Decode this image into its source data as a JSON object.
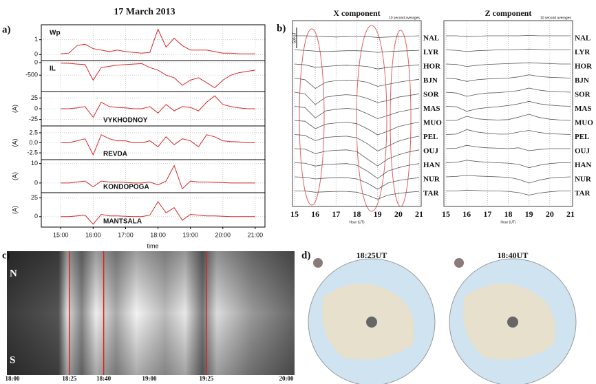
{
  "chart_data": [
    {
      "type": "stacked-line",
      "label": "a)",
      "title": "17 March 2013",
      "xlabel": "time",
      "color": "#d62728",
      "x": [
        15,
        15.25,
        15.5,
        15.75,
        16,
        16.25,
        16.5,
        16.75,
        17,
        17.25,
        17.5,
        17.75,
        18,
        18.25,
        18.5,
        18.75,
        19,
        19.25,
        19.5,
        19.75,
        20,
        20.25,
        20.5,
        20.75,
        21
      ],
      "xlim": [
        14.4,
        21.3
      ],
      "xticks": [
        {
          "value": 15,
          "label": "15:00"
        },
        {
          "value": 16,
          "label": "16:00"
        },
        {
          "value": 17,
          "label": "17:00"
        },
        {
          "value": 18,
          "label": "18:00"
        },
        {
          "value": 19,
          "label": "19:00"
        },
        {
          "value": 20,
          "label": "20:00"
        },
        {
          "value": 21,
          "label": "21:00"
        }
      ],
      "grid": true,
      "subplots": [
        {
          "name": "Wp",
          "ylim": [
            -0.4,
            2.0
          ],
          "yticks": [
            0,
            1
          ],
          "values": [
            0.05,
            0.1,
            0.6,
            0.7,
            0.4,
            0.3,
            0.2,
            0.3,
            0.2,
            0.15,
            0.1,
            0.15,
            1.7,
            0.5,
            1.1,
            0.6,
            0.3,
            0.3,
            0.3,
            0.2,
            0.1,
            0.1,
            0.05,
            0.05,
            0.05
          ]
        },
        {
          "name": "IL",
          "ylim": [
            -1150,
            80
          ],
          "yticks": [
            0,
            -500
          ],
          "values": [
            -20,
            -30,
            -60,
            -80,
            -700,
            -200,
            -150,
            -100,
            -80,
            -60,
            -40,
            -200,
            -300,
            -500,
            -600,
            -900,
            -700,
            -600,
            -800,
            -1000,
            -700,
            -500,
            -400,
            -350,
            -300
          ]
        },
        {
          "name": "VYKHODNOY",
          "ylabel": "(A)",
          "ylim": [
            -40,
            40
          ],
          "yticks": [
            -25,
            0,
            25
          ],
          "values": [
            0,
            0,
            2,
            5,
            -20,
            15,
            5,
            3,
            2,
            0,
            0,
            5,
            -10,
            10,
            -5,
            5,
            3,
            -5,
            15,
            30,
            10,
            5,
            2,
            0,
            0
          ]
        },
        {
          "name": "REVDA",
          "ylabel": "(A)",
          "ylim": [
            -4.2,
            4.2
          ],
          "yticks": [
            {
              "value": -2.5,
              "label": "-2.5"
            },
            {
              "value": 0,
              "label": "0.0"
            },
            {
              "value": 2.5,
              "label": "2.5"
            }
          ],
          "values": [
            0,
            0,
            0.5,
            1,
            -3,
            2,
            1,
            0.5,
            0.5,
            0,
            0,
            0.5,
            -1,
            1.5,
            -0.5,
            1,
            0.5,
            -1,
            2,
            1.5,
            0.5,
            0.3,
            0.2,
            0,
            0
          ]
        },
        {
          "name": "KONDOPOGA",
          "ylabel": "(A)",
          "ylim": [
            -5,
            12
          ],
          "yticks": [
            0,
            10
          ],
          "values": [
            0,
            0,
            0.5,
            1,
            -2,
            1,
            0.5,
            0.5,
            0.3,
            0,
            0,
            0.5,
            -1,
            1,
            9,
            -3,
            1,
            0.5,
            0.5,
            0.3,
            0.2,
            0,
            0,
            0,
            0
          ]
        },
        {
          "name": "MANTSALA",
          "ylabel": "(A)",
          "ylim": [
            -14,
            32
          ],
          "yticks": [
            0,
            25
          ],
          "values": [
            0,
            0,
            1,
            2,
            -10,
            3,
            1,
            1,
            0.5,
            0,
            0,
            2,
            20,
            5,
            12,
            -5,
            3,
            2,
            1,
            1,
            0.5,
            0,
            0,
            0,
            0
          ]
        }
      ]
    },
    {
      "type": "magnetogram",
      "label": "b)",
      "title": "X component",
      "note": "10 second averages",
      "xlabel": "Hour (UT)",
      "color": "#555555",
      "scale": {
        "value": 500,
        "label": "500 nT"
      },
      "x": [
        15,
        15.5,
        16,
        16.5,
        17,
        17.5,
        18,
        18.5,
        19,
        19.5,
        20,
        20.5,
        21
      ],
      "xlim": [
        14.9,
        21.1
      ],
      "xticks": [
        15,
        16,
        17,
        18,
        19,
        20,
        21
      ],
      "series": [
        {
          "name": "NAL",
          "values": [
            0,
            0,
            -10,
            -20,
            -30,
            -20,
            -10,
            -20,
            -40,
            -30,
            -20,
            -10,
            0
          ]
        },
        {
          "name": "LYR",
          "values": [
            0,
            -10,
            -30,
            -40,
            -30,
            -20,
            -20,
            -30,
            -60,
            -40,
            -30,
            -20,
            -10
          ]
        },
        {
          "name": "HOR",
          "values": [
            0,
            -20,
            -80,
            -60,
            -40,
            -30,
            -40,
            -60,
            -120,
            -80,
            -60,
            -40,
            -20
          ]
        },
        {
          "name": "BJN",
          "values": [
            0,
            -40,
            -250,
            -100,
            -60,
            -50,
            -60,
            -100,
            -200,
            -150,
            -100,
            -60,
            -30
          ]
        },
        {
          "name": "SOR",
          "values": [
            0,
            -40,
            -300,
            -120,
            -80,
            -60,
            -80,
            -150,
            -250,
            -200,
            -120,
            -80,
            -40
          ]
        },
        {
          "name": "MAS",
          "values": [
            0,
            -30,
            -280,
            -110,
            -70,
            -50,
            -70,
            -180,
            -300,
            -220,
            -140,
            -90,
            -40
          ]
        },
        {
          "name": "MUO",
          "values": [
            0,
            -20,
            -200,
            -90,
            -60,
            -40,
            -80,
            -200,
            -350,
            -260,
            -150,
            -90,
            -40
          ]
        },
        {
          "name": "PEL",
          "values": [
            0,
            -20,
            -150,
            -70,
            -50,
            -40,
            -80,
            -220,
            -400,
            -280,
            -160,
            -90,
            -40
          ]
        },
        {
          "name": "OUJ",
          "values": [
            0,
            -10,
            -120,
            -60,
            -40,
            -30,
            -70,
            -250,
            -420,
            -250,
            -150,
            -80,
            -30
          ]
        },
        {
          "name": "HAN",
          "values": [
            0,
            -10,
            -80,
            -40,
            -30,
            -20,
            -60,
            -200,
            -380,
            -200,
            -120,
            -60,
            -20
          ]
        },
        {
          "name": "NUR",
          "values": [
            0,
            -10,
            -50,
            -30,
            -20,
            -20,
            -50,
            -150,
            -300,
            -150,
            -90,
            -50,
            -20
          ]
        },
        {
          "name": "TAR",
          "values": [
            0,
            0,
            -30,
            -20,
            -10,
            -10,
            -30,
            -100,
            -200,
            -100,
            -60,
            -30,
            -10
          ]
        }
      ]
    },
    {
      "type": "magnetogram",
      "title": "Z component",
      "note": "10 second averages",
      "xlabel": "Hour (UT)",
      "color": "#555555",
      "x": [
        15,
        15.5,
        16,
        16.5,
        17,
        17.5,
        18,
        18.5,
        19,
        19.5,
        20,
        20.5,
        21
      ],
      "xlim": [
        14.9,
        21.1
      ],
      "xticks": [
        15,
        16,
        17,
        18,
        19,
        20,
        21
      ],
      "series": [
        {
          "name": "NAL",
          "values": [
            0,
            0,
            -20,
            -10,
            0,
            0,
            0,
            0,
            10,
            0,
            0,
            0,
            0
          ]
        },
        {
          "name": "LYR",
          "values": [
            0,
            -10,
            -40,
            -20,
            -10,
            0,
            0,
            10,
            20,
            10,
            0,
            0,
            0
          ]
        },
        {
          "name": "HOR",
          "values": [
            0,
            -10,
            -60,
            -30,
            -10,
            0,
            10,
            20,
            30,
            20,
            10,
            0,
            0
          ]
        },
        {
          "name": "BJN",
          "values": [
            0,
            -20,
            -80,
            -40,
            -20,
            -10,
            0,
            30,
            80,
            40,
            20,
            10,
            0
          ]
        },
        {
          "name": "SOR",
          "values": [
            0,
            -20,
            -100,
            -50,
            -20,
            -10,
            10,
            40,
            100,
            50,
            20,
            10,
            0
          ]
        },
        {
          "name": "MAS",
          "values": [
            0,
            -10,
            -120,
            -60,
            -30,
            -10,
            20,
            60,
            120,
            60,
            30,
            10,
            0
          ]
        },
        {
          "name": "MUO",
          "values": [
            0,
            0,
            100,
            40,
            20,
            10,
            20,
            80,
            150,
            70,
            30,
            10,
            0
          ]
        },
        {
          "name": "PEL",
          "values": [
            0,
            10,
            120,
            60,
            30,
            10,
            10,
            60,
            100,
            50,
            20,
            10,
            0
          ]
        },
        {
          "name": "OUJ",
          "values": [
            0,
            10,
            80,
            40,
            20,
            10,
            0,
            20,
            -50,
            -20,
            0,
            0,
            0
          ]
        },
        {
          "name": "HAN",
          "values": [
            0,
            10,
            60,
            30,
            10,
            0,
            -10,
            -40,
            -120,
            -60,
            -20,
            0,
            0
          ]
        },
        {
          "name": "NUR",
          "values": [
            0,
            10,
            40,
            20,
            10,
            0,
            -10,
            -60,
            -150,
            -80,
            -30,
            -10,
            0
          ]
        },
        {
          "name": "TAR",
          "values": [
            0,
            0,
            20,
            10,
            0,
            0,
            -10,
            -40,
            -100,
            -50,
            -20,
            0,
            0
          ]
        }
      ]
    },
    {
      "type": "keogram",
      "label": "c)",
      "top_label": "N",
      "bottom_label": "S",
      "marker_color": "#e02020",
      "xlim": [
        17.96,
        20.06
      ],
      "xticks": [
        {
          "value": 18,
          "label": "18:00"
        },
        {
          "value": 18.41667,
          "label": "18:25"
        },
        {
          "value": 18.66667,
          "label": "18:40"
        },
        {
          "value": 19,
          "label": "19:00"
        },
        {
          "value": 19.41667,
          "label": "19:25"
        },
        {
          "value": 20,
          "label": "20:00"
        }
      ],
      "markers": [
        18.41667,
        18.66667,
        19.41667
      ]
    },
    {
      "type": "map-pair",
      "label": "d)",
      "titles": [
        "18:25UT",
        "18:40UT"
      ]
    }
  ]
}
